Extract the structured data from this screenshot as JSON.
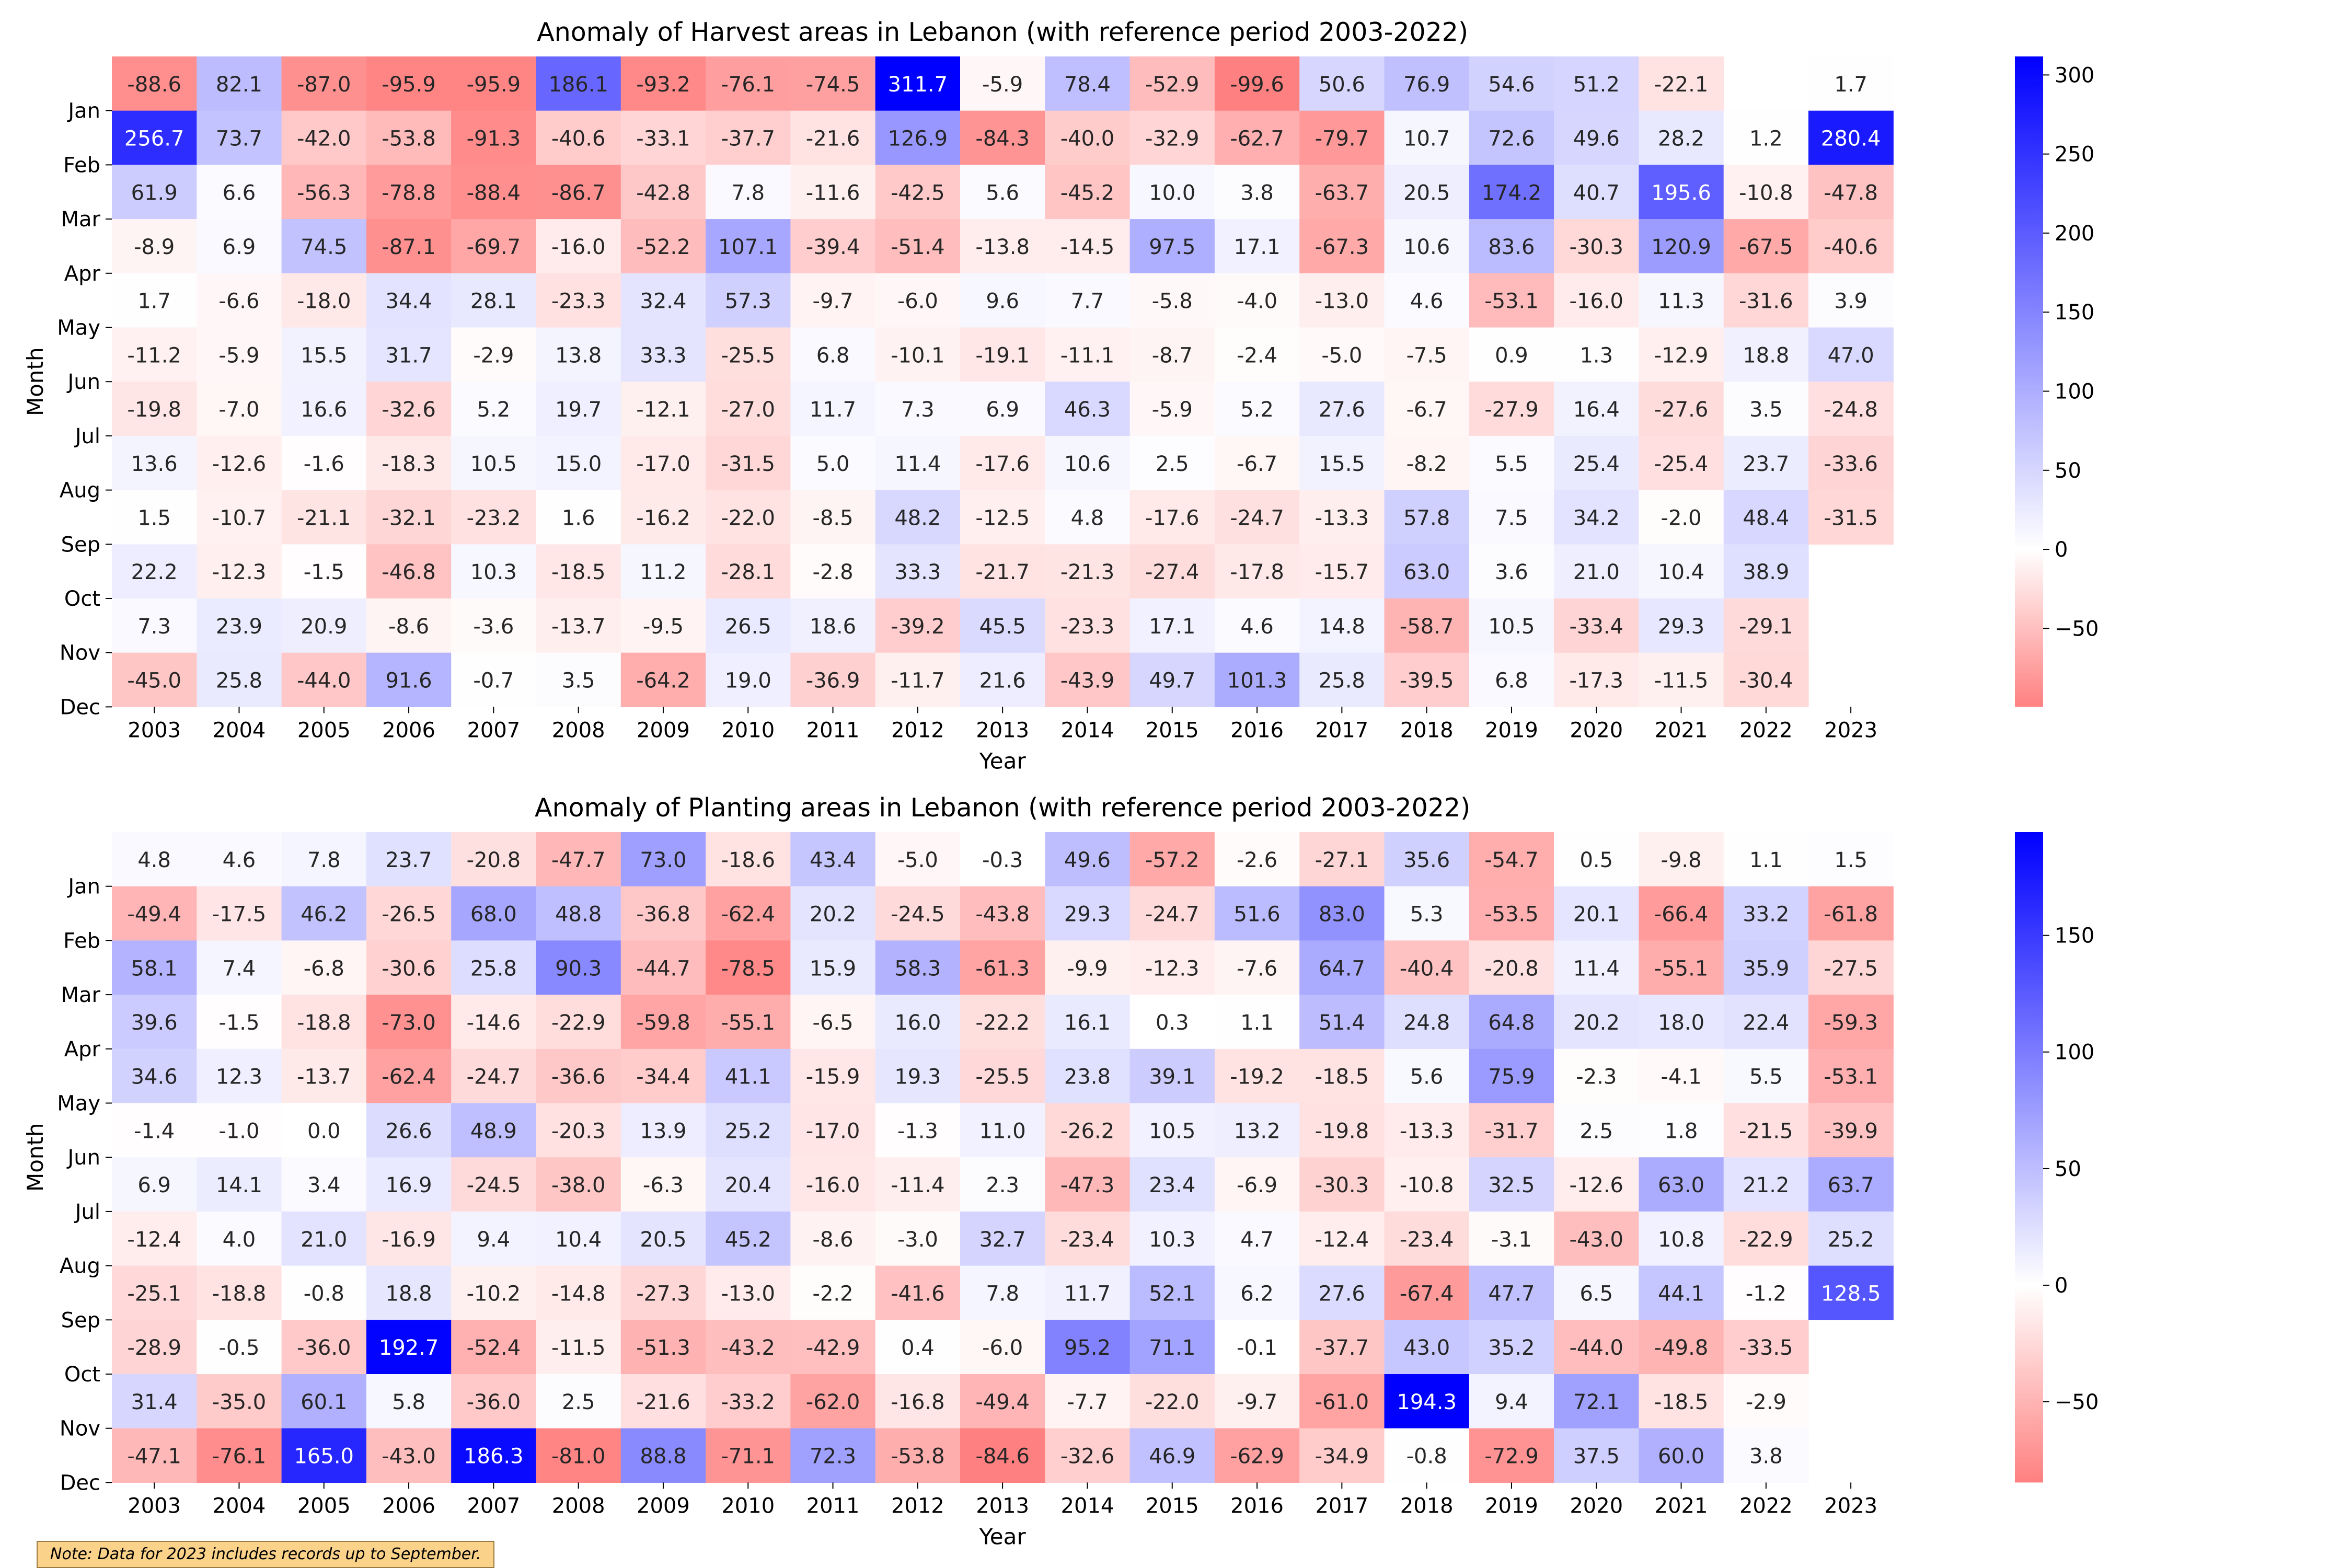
{
  "chart_data": [
    {
      "type": "heatmap",
      "title": "Anomaly of Harvest areas in Lebanon (with reference period 2003-2022)",
      "xlabel": "Year",
      "ylabel": "Month",
      "x": [
        "2003",
        "2004",
        "2005",
        "2006",
        "2007",
        "2008",
        "2009",
        "2010",
        "2011",
        "2012",
        "2013",
        "2014",
        "2015",
        "2016",
        "2017",
        "2018",
        "2019",
        "2020",
        "2021",
        "2022",
        "2023"
      ],
      "y_ticks": [
        "Jan",
        "Feb",
        "Mar",
        "Apr",
        "May",
        "Jun",
        "Jul",
        "Aug",
        "Sep",
        "Oct",
        "Nov",
        "Dec"
      ],
      "values": [
        [
          -88.6,
          82.1,
          -87.0,
          -95.9,
          -95.9,
          186.1,
          -93.2,
          -76.1,
          -74.5,
          311.7,
          -5.9,
          78.4,
          -52.9,
          -99.6,
          50.6,
          76.9,
          54.6,
          51.2,
          -22.1,
          null,
          1.7
        ],
        [
          256.7,
          73.7,
          -42.0,
          -53.8,
          -91.3,
          -40.6,
          -33.1,
          -37.7,
          -21.6,
          126.9,
          -84.3,
          -40.0,
          -32.9,
          -62.7,
          -79.7,
          10.7,
          72.6,
          49.6,
          28.2,
          1.2,
          280.4
        ],
        [
          61.9,
          6.6,
          -56.3,
          -78.8,
          -88.4,
          -86.7,
          -42.8,
          7.8,
          -11.6,
          -42.5,
          5.6,
          -45.2,
          10.0,
          3.8,
          -63.7,
          20.5,
          174.2,
          40.7,
          195.6,
          -10.8,
          -47.8
        ],
        [
          -8.9,
          6.9,
          74.5,
          -87.1,
          -69.7,
          -16.0,
          -52.2,
          107.1,
          -39.4,
          -51.4,
          -13.8,
          -14.5,
          97.5,
          17.1,
          -67.3,
          10.6,
          83.6,
          -30.3,
          120.9,
          -67.5,
          -40.6
        ],
        [
          1.7,
          -6.6,
          -18.0,
          34.4,
          28.1,
          -23.3,
          32.4,
          57.3,
          -9.7,
          -6.0,
          9.6,
          7.7,
          -5.8,
          -4.0,
          -13.0,
          4.6,
          -53.1,
          -16.0,
          11.3,
          -31.6,
          3.9
        ],
        [
          -11.2,
          -5.9,
          15.5,
          31.7,
          -2.9,
          13.8,
          33.3,
          -25.5,
          6.8,
          -10.1,
          -19.1,
          -11.1,
          -8.7,
          -2.4,
          -5.0,
          -7.5,
          0.9,
          1.3,
          -12.9,
          18.8,
          47.0
        ],
        [
          -19.8,
          -7.0,
          16.6,
          -32.6,
          5.2,
          19.7,
          -12.1,
          -27.0,
          11.7,
          7.3,
          6.9,
          46.3,
          -5.9,
          5.2,
          27.6,
          -6.7,
          -27.9,
          16.4,
          -27.6,
          3.5,
          -24.8
        ],
        [
          13.6,
          -12.6,
          -1.6,
          -18.3,
          10.5,
          15.0,
          -17.0,
          -31.5,
          5.0,
          11.4,
          -17.6,
          10.6,
          2.5,
          -6.7,
          15.5,
          -8.2,
          5.5,
          25.4,
          -25.4,
          23.7,
          -33.6
        ],
        [
          1.5,
          -10.7,
          -21.1,
          -32.1,
          -23.2,
          1.6,
          -16.2,
          -22.0,
          -8.5,
          48.2,
          -12.5,
          4.8,
          -17.6,
          -24.7,
          -13.3,
          57.8,
          7.5,
          34.2,
          -2.0,
          48.4,
          -31.5
        ],
        [
          22.2,
          -12.3,
          -1.5,
          -46.8,
          10.3,
          -18.5,
          11.2,
          -28.1,
          -2.8,
          33.3,
          -21.7,
          -21.3,
          -27.4,
          -17.8,
          -15.7,
          63.0,
          3.6,
          21.0,
          10.4,
          38.9,
          null
        ],
        [
          7.3,
          23.9,
          20.9,
          -8.6,
          -3.6,
          -13.7,
          -9.5,
          26.5,
          18.6,
          -39.2,
          45.5,
          -23.3,
          17.1,
          4.6,
          14.8,
          -58.7,
          10.5,
          -33.4,
          29.3,
          -29.1,
          null
        ],
        [
          -45.0,
          25.8,
          -44.0,
          91.6,
          -0.7,
          3.5,
          -64.2,
          19.0,
          -36.9,
          -11.7,
          21.6,
          -43.9,
          49.7,
          101.3,
          25.8,
          -39.5,
          6.8,
          -17.3,
          -11.5,
          -30.4,
          null
        ]
      ],
      "colorbar": {
        "ticks": [
          300,
          250,
          200,
          150,
          100,
          50,
          0,
          -50
        ],
        "vmin": -99.6,
        "vmax": 311.7
      },
      "colors": {
        "positive": "#0000ff",
        "zero": "#ffffff",
        "negative": "#ff8080"
      }
    },
    {
      "type": "heatmap",
      "title": "Anomaly of Planting areas in Lebanon (with reference period 2003-2022)",
      "xlabel": "Year",
      "ylabel": "Month",
      "x": [
        "2003",
        "2004",
        "2005",
        "2006",
        "2007",
        "2008",
        "2009",
        "2010",
        "2011",
        "2012",
        "2013",
        "2014",
        "2015",
        "2016",
        "2017",
        "2018",
        "2019",
        "2020",
        "2021",
        "2022",
        "2023"
      ],
      "y_ticks": [
        "Jan",
        "Feb",
        "Mar",
        "Apr",
        "May",
        "Jun",
        "Jul",
        "Aug",
        "Sep",
        "Oct",
        "Nov",
        "Dec"
      ],
      "values": [
        [
          4.8,
          4.6,
          7.8,
          23.7,
          -20.8,
          -47.7,
          73.0,
          -18.6,
          43.4,
          -5.0,
          -0.3,
          49.6,
          -57.2,
          -2.6,
          -27.1,
          35.6,
          -54.7,
          0.5,
          -9.8,
          1.1,
          1.5
        ],
        [
          -49.4,
          -17.5,
          46.2,
          -26.5,
          68.0,
          48.8,
          -36.8,
          -62.4,
          20.2,
          -24.5,
          -43.8,
          29.3,
          -24.7,
          51.6,
          83.0,
          5.3,
          -53.5,
          20.1,
          -66.4,
          33.2,
          -61.8
        ],
        [
          58.1,
          7.4,
          -6.8,
          -30.6,
          25.8,
          90.3,
          -44.7,
          -78.5,
          15.9,
          58.3,
          -61.3,
          -9.9,
          -12.3,
          -7.6,
          64.7,
          -40.4,
          -20.8,
          11.4,
          -55.1,
          35.9,
          -27.5
        ],
        [
          39.6,
          -1.5,
          -18.8,
          -73.0,
          -14.6,
          -22.9,
          -59.8,
          -55.1,
          -6.5,
          16.0,
          -22.2,
          16.1,
          0.3,
          1.1,
          51.4,
          24.8,
          64.8,
          20.2,
          18.0,
          22.4,
          -59.3
        ],
        [
          34.6,
          12.3,
          -13.7,
          -62.4,
          -24.7,
          -36.6,
          -34.4,
          41.1,
          -15.9,
          19.3,
          -25.5,
          23.8,
          39.1,
          -19.2,
          -18.5,
          5.6,
          75.9,
          -2.3,
          -4.1,
          5.5,
          -53.1
        ],
        [
          -1.4,
          -1.0,
          -0.0,
          26.6,
          48.9,
          -20.3,
          13.9,
          25.2,
          -17.0,
          -1.3,
          11.0,
          -26.2,
          10.5,
          13.2,
          -19.8,
          -13.3,
          -31.7,
          2.5,
          1.8,
          -21.5,
          -39.9
        ],
        [
          6.9,
          14.1,
          3.4,
          16.9,
          -24.5,
          -38.0,
          -6.3,
          20.4,
          -16.0,
          -11.4,
          2.3,
          -47.3,
          23.4,
          -6.9,
          -30.3,
          -10.8,
          32.5,
          -12.6,
          63.0,
          21.2,
          63.7
        ],
        [
          -12.4,
          4.0,
          21.0,
          -16.9,
          9.4,
          10.4,
          20.5,
          45.2,
          -8.6,
          -3.0,
          32.7,
          -23.4,
          10.3,
          4.7,
          -12.4,
          -23.4,
          -3.1,
          -43.0,
          10.8,
          -22.9,
          25.2
        ],
        [
          -25.1,
          -18.8,
          -0.8,
          18.8,
          -10.2,
          -14.8,
          -27.3,
          -13.0,
          -2.2,
          -41.6,
          7.8,
          11.7,
          52.1,
          6.2,
          27.6,
          -67.4,
          47.7,
          6.5,
          44.1,
          -1.2,
          128.5
        ],
        [
          -28.9,
          -0.5,
          -36.0,
          192.7,
          -52.4,
          -11.5,
          -51.3,
          -43.2,
          -42.9,
          0.4,
          -6.0,
          95.2,
          71.1,
          -0.1,
          -37.7,
          43.0,
          35.2,
          -44.0,
          -49.8,
          -33.5,
          null
        ],
        [
          31.4,
          -35.0,
          60.1,
          5.8,
          -36.0,
          2.5,
          -21.6,
          -33.2,
          -62.0,
          -16.8,
          -49.4,
          -7.7,
          -22.0,
          -9.7,
          -61.0,
          194.3,
          9.4,
          72.1,
          -18.5,
          -2.9,
          null
        ],
        [
          -47.1,
          -76.1,
          165.0,
          -43.0,
          186.3,
          -81.0,
          88.8,
          -71.1,
          72.3,
          -53.8,
          -84.6,
          -32.6,
          46.9,
          -62.9,
          -34.9,
          -0.8,
          -72.9,
          37.5,
          60.0,
          3.8,
          null
        ]
      ],
      "colorbar": {
        "ticks": [
          150,
          100,
          50,
          0,
          -50
        ],
        "vmin": -84.6,
        "vmax": 194.3
      },
      "colors": {
        "positive": "#0000ff",
        "zero": "#ffffff",
        "negative": "#ff8080"
      }
    }
  ],
  "note": "Note: Data for 2023 includes records up to September."
}
